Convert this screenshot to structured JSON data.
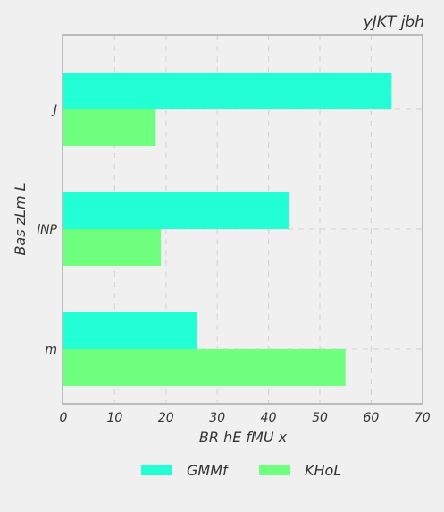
{
  "chart_data": {
    "type": "bar",
    "orientation": "horizontal",
    "title": "yJKT jbh",
    "xlabel": "BR hE  fMU x",
    "ylabel": "Bas zLm L",
    "categories": [
      "J",
      "lNP",
      "m"
    ],
    "series": [
      {
        "name": "GMMf",
        "color": "#22ffd4",
        "values": [
          64,
          44,
          26
        ]
      },
      {
        "name": "KHoL",
        "color": "#6eff7e",
        "values": [
          18,
          19,
          55
        ]
      }
    ],
    "xlim": [
      0,
      70
    ],
    "xticks": [
      0,
      10,
      20,
      30,
      40,
      50,
      60,
      70
    ],
    "grid": true,
    "legend_position": "bottom"
  },
  "colors": {
    "background": "#f0f0f0",
    "plot_border": "#bcbcbc",
    "grid": "#d6d6d6",
    "text": "#333333"
  }
}
